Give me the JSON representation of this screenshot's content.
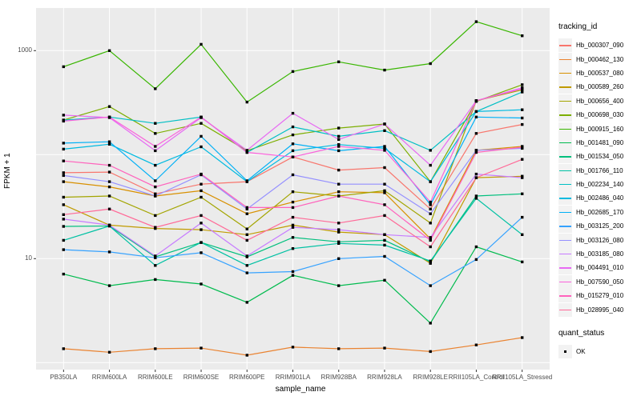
{
  "figure": {
    "panel_bg": "#ebebeb",
    "grid_color": "#ffffff",
    "tick_color": "#333333",
    "tick_text_color": "#4d4d4d",
    "point_color": "#000000"
  },
  "legend": {
    "tracking_title": "tracking_id",
    "quant_title": "quant_status",
    "quant_label": "OK"
  },
  "chart_data": {
    "type": "line",
    "title": "",
    "xlabel": "sample_name",
    "ylabel": "FPKM + 1",
    "y_scale": "log10",
    "ylim": [
      0.86,
      2570
    ],
    "y_tick_labels": [
      1000,
      10
    ],
    "y_gridline_values": [
      1,
      10,
      100,
      1000
    ],
    "grid": "major-only",
    "legend_position": "right",
    "marker": "black-square (quant_status OK)",
    "categories": [
      "PB350LA",
      "RRIM600LA",
      "RRIM600LE",
      "RRIM600SE",
      "RRIM600PE",
      "RRIM901LA",
      "RRIM928BA",
      "RRIM928LA",
      "RRIM928LE",
      "RRII105LA_Control",
      "RRII105LA_Stressed"
    ],
    "series": [
      {
        "name": "Hb_000307_090",
        "color": "#F8766D",
        "values": [
          67,
          68,
          42,
          52,
          55,
          95,
          71,
          75,
          30,
          160,
          195
        ]
      },
      {
        "name": "Hb_000462_130",
        "color": "#EA8331",
        "values": [
          1.36,
          1.26,
          1.36,
          1.38,
          1.18,
          1.41,
          1.36,
          1.38,
          1.28,
          1.48,
          1.74
        ]
      },
      {
        "name": "Hb_000537_080",
        "color": "#D89000",
        "values": [
          55,
          49,
          40,
          45,
          27,
          35,
          44,
          43,
          15.5,
          110,
          120
        ]
      },
      {
        "name": "Hb_000589_260",
        "color": "#C09B00",
        "values": [
          33,
          21,
          19.5,
          19,
          17,
          21,
          18,
          17,
          9,
          60,
          62
        ]
      },
      {
        "name": "Hb_000656_400",
        "color": "#A3A500",
        "values": [
          39,
          40,
          26,
          39,
          19.3,
          44,
          40,
          45,
          22,
          330,
          420
        ]
      },
      {
        "name": "Hb_000698_030",
        "color": "#7CAE00",
        "values": [
          215,
          290,
          160,
          200,
          109,
          155,
          180,
          197,
          55,
          325,
          470
        ]
      },
      {
        "name": "Hb_000915_160",
        "color": "#39B600",
        "values": [
          700,
          1000,
          430,
          1150,
          320,
          630,
          780,
          650,
          750,
          1900,
          1390
        ]
      },
      {
        "name": "Hb_001481_090",
        "color": "#00BB4E",
        "values": [
          7.1,
          5.5,
          6.3,
          5.7,
          3.8,
          6.9,
          5.5,
          6.2,
          2.4,
          13,
          9.3
        ]
      },
      {
        "name": "Hb_001534_050",
        "color": "#00BF7D",
        "values": [
          20.4,
          20.6,
          10.4,
          14.3,
          10.4,
          16,
          14.5,
          15,
          9.3,
          40,
          42
        ]
      },
      {
        "name": "Hb_001766_110",
        "color": "#00C1A3",
        "values": [
          15,
          20.6,
          8.6,
          14.3,
          8.6,
          12.5,
          14,
          13.5,
          9.5,
          38,
          17
        ]
      },
      {
        "name": "Hb_002234_140",
        "color": "#00BFC4",
        "values": [
          215,
          230,
          200,
          230,
          105,
          185,
          150,
          170,
          110,
          260,
          400
        ]
      },
      {
        "name": "Hb_002486_040",
        "color": "#00BAE0",
        "values": [
          113,
          126,
          79,
          119,
          55,
          109,
          125,
          115,
          55,
          260,
          270
        ]
      },
      {
        "name": "Hb_002685_170",
        "color": "#00B0F6",
        "values": [
          129,
          133,
          56,
          150,
          56,
          127,
          109,
          120,
          33,
          230,
          225
        ]
      },
      {
        "name": "Hb_003125_200",
        "color": "#35A2FF",
        "values": [
          12.2,
          11.6,
          10.2,
          11.4,
          7.3,
          7.5,
          10,
          10.5,
          5.5,
          9.8,
          25
        ]
      },
      {
        "name": "Hb_003126_080",
        "color": "#9590FF",
        "values": [
          63,
          55,
          40,
          64,
          30,
          64,
          52,
          52,
          27,
          110,
          115
        ]
      },
      {
        "name": "Hb_003185_080",
        "color": "#C77CFF",
        "values": [
          24,
          21,
          10.6,
          22,
          10.6,
          20,
          19,
          17,
          16,
          65,
          60
        ]
      },
      {
        "name": "Hb_004491_010",
        "color": "#E76BF3",
        "values": [
          240,
          227,
          109,
          227,
          110,
          250,
          140,
          197,
          79,
          330,
          440
        ]
      },
      {
        "name": "Hb_007590_050",
        "color": "#FA62DB",
        "values": [
          210,
          230,
          120,
          230,
          105,
          95,
          120,
          110,
          35,
          330,
          430
        ]
      },
      {
        "name": "Hb_015279_010",
        "color": "#FF62BC",
        "values": [
          87,
          79,
          49,
          65,
          31,
          31,
          40,
          33,
          15,
          105,
          118
        ]
      },
      {
        "name": "Hb_028995_040",
        "color": "#FF6A98",
        "values": [
          26.5,
          30,
          20,
          26,
          15,
          25,
          22,
          26,
          13,
          60,
          90
        ]
      }
    ]
  }
}
